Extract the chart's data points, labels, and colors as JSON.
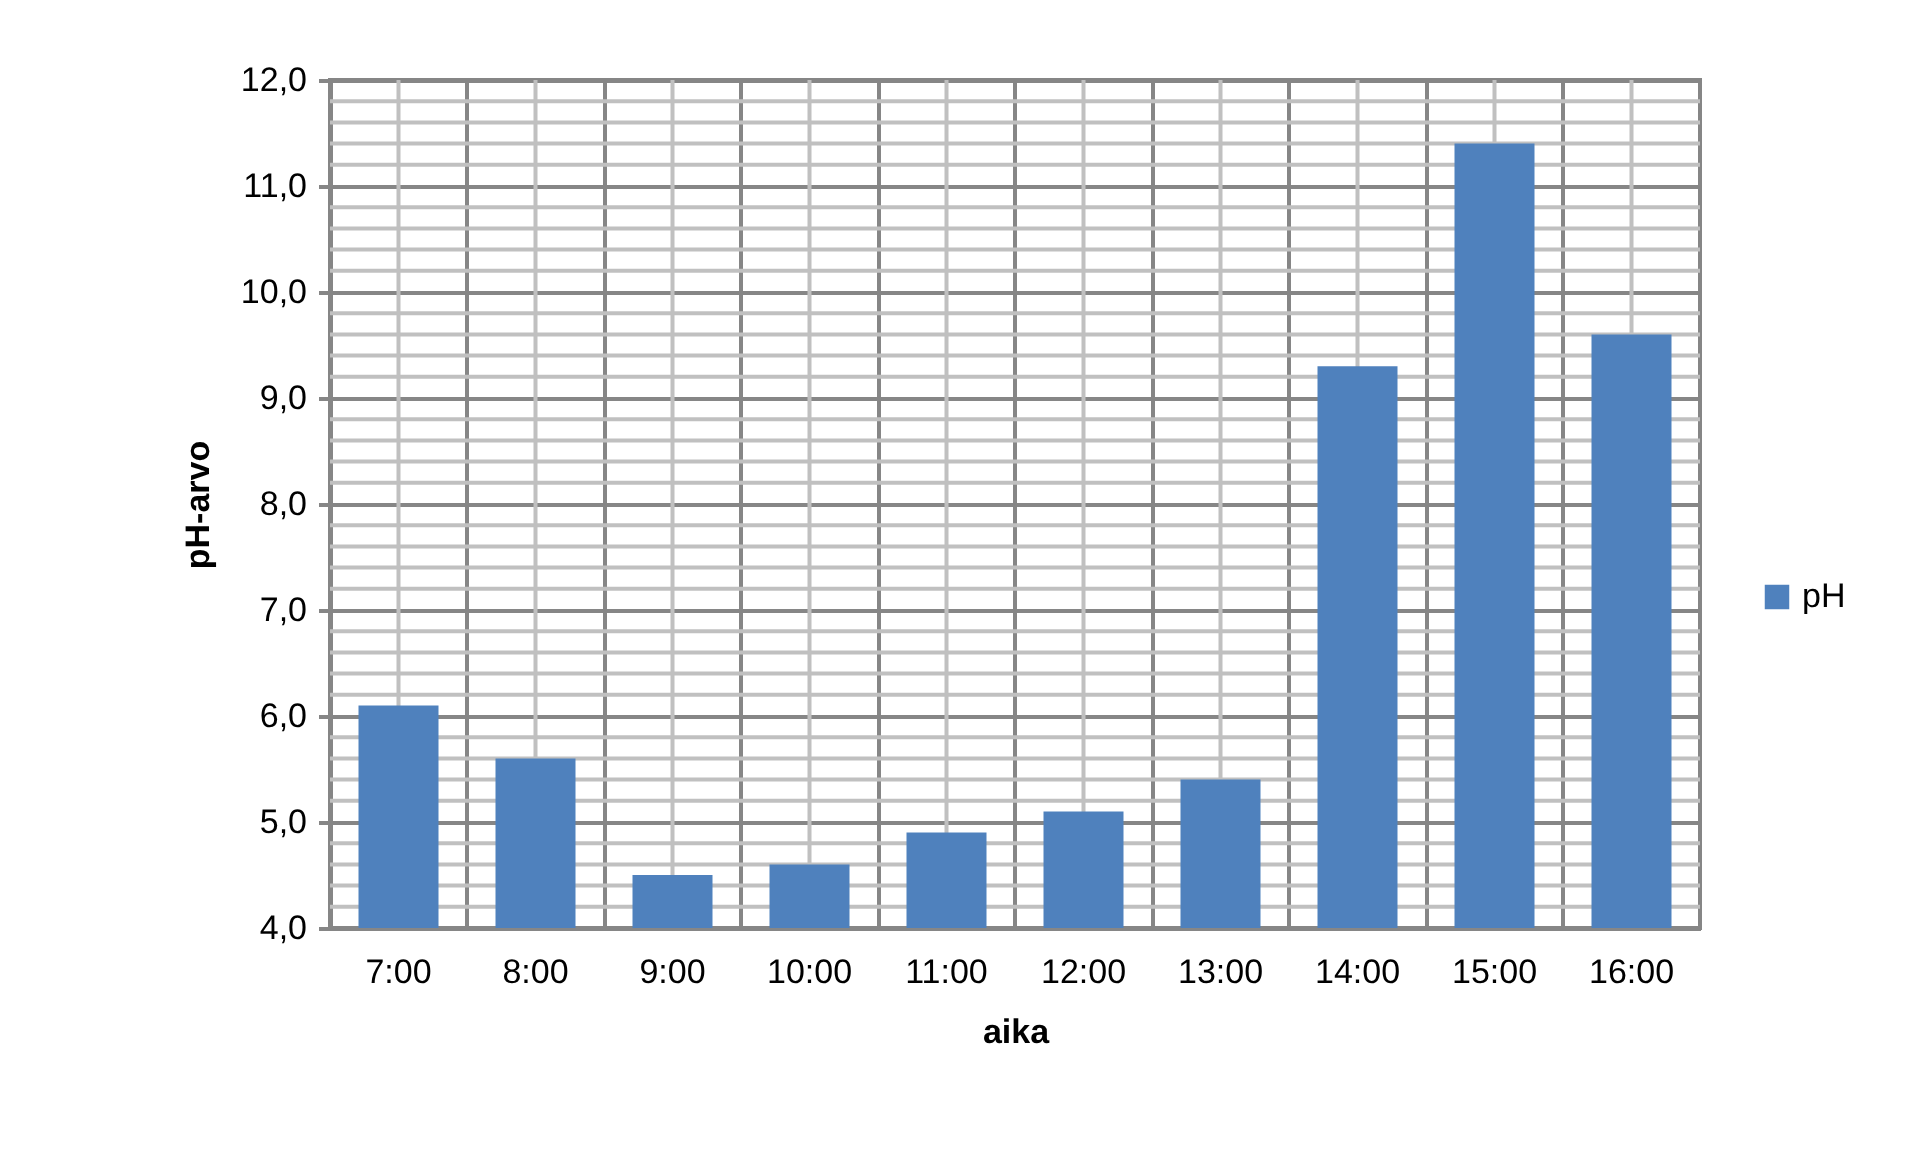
{
  "chart_data": {
    "type": "bar",
    "xlabel": "aika",
    "ylabel": "pH-arvo",
    "categories": [
      "7:00",
      "8:00",
      "9:00",
      "10:00",
      "11:00",
      "12:00",
      "13:00",
      "14:00",
      "15:00",
      "16:00"
    ],
    "series": [
      {
        "name": "pH",
        "color": "#4f81bd",
        "values": [
          6.1,
          5.6,
          4.5,
          4.6,
          4.9,
          5.1,
          5.4,
          9.3,
          11.4,
          9.6
        ]
      }
    ],
    "ylim": [
      4,
      12
    ],
    "yticks": [
      {
        "value": 4,
        "label": "4,0"
      },
      {
        "value": 5,
        "label": "5,0"
      },
      {
        "value": 6,
        "label": "6,0"
      },
      {
        "value": 7,
        "label": "7,0"
      },
      {
        "value": 8,
        "label": "8,0"
      },
      {
        "value": 9,
        "label": "9,0"
      },
      {
        "value": 10,
        "label": "10,0"
      },
      {
        "value": 11,
        "label": "11,0"
      },
      {
        "value": 12,
        "label": "12,0"
      }
    ],
    "grid": true,
    "legend": "right"
  }
}
